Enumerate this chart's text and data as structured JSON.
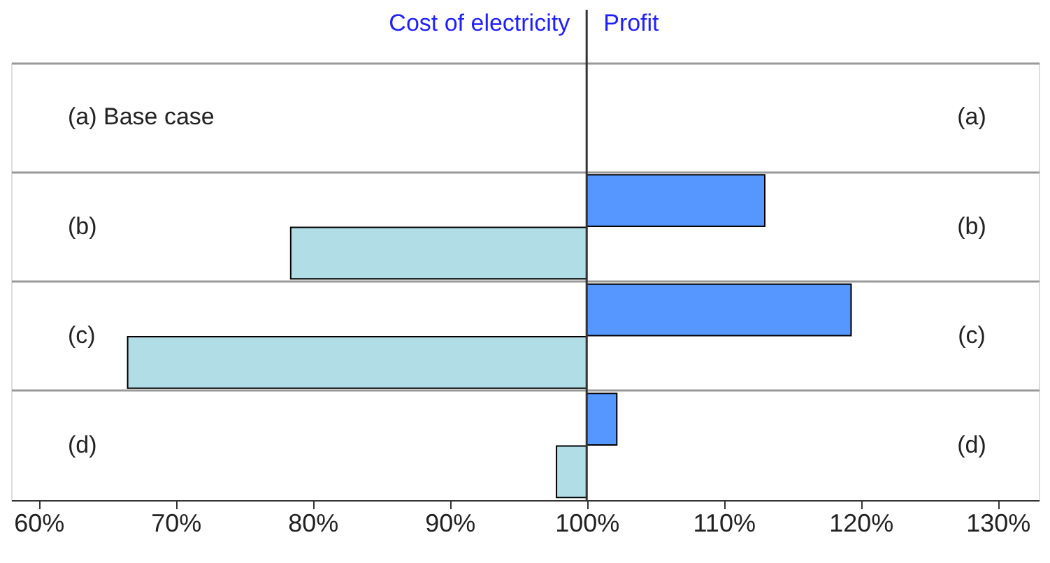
{
  "chart_data": {
    "type": "bar",
    "orientation": "horizontal",
    "categories": [
      "(a) Base case",
      "(b)",
      "(c)",
      "(d)"
    ],
    "series": [
      {
        "color": "#b0dde6",
        "base": [
          null,
          100,
          100,
          100
        ],
        "values": [
          null,
          -21.6,
          -33.5,
          -2.2
        ]
      },
      {
        "color": "#5596ff",
        "base": [
          null,
          100,
          100,
          100
        ],
        "values": [
          null,
          13.0,
          19.3,
          2.2
        ]
      }
    ],
    "annotations": [
      "Cost of electricity",
      "Profit",
      "(a)",
      "(b)",
      "(c)",
      "(d)"
    ],
    "xlim": [
      58,
      133
    ],
    "xticks": [
      {
        "value": 60,
        "label": "60%"
      },
      {
        "value": 70,
        "label": "70%"
      },
      {
        "value": 80,
        "label": "80%"
      },
      {
        "value": 90,
        "label": "90%"
      },
      {
        "value": 100,
        "label": "100%"
      },
      {
        "value": 110,
        "label": "110%"
      },
      {
        "value": 120,
        "label": "120%"
      },
      {
        "value": 130,
        "label": "130%"
      }
    ],
    "ref_lines": [
      {
        "axis": "x",
        "value": 100,
        "color": "#333333"
      }
    ],
    "grid": "y",
    "legend": false
  }
}
